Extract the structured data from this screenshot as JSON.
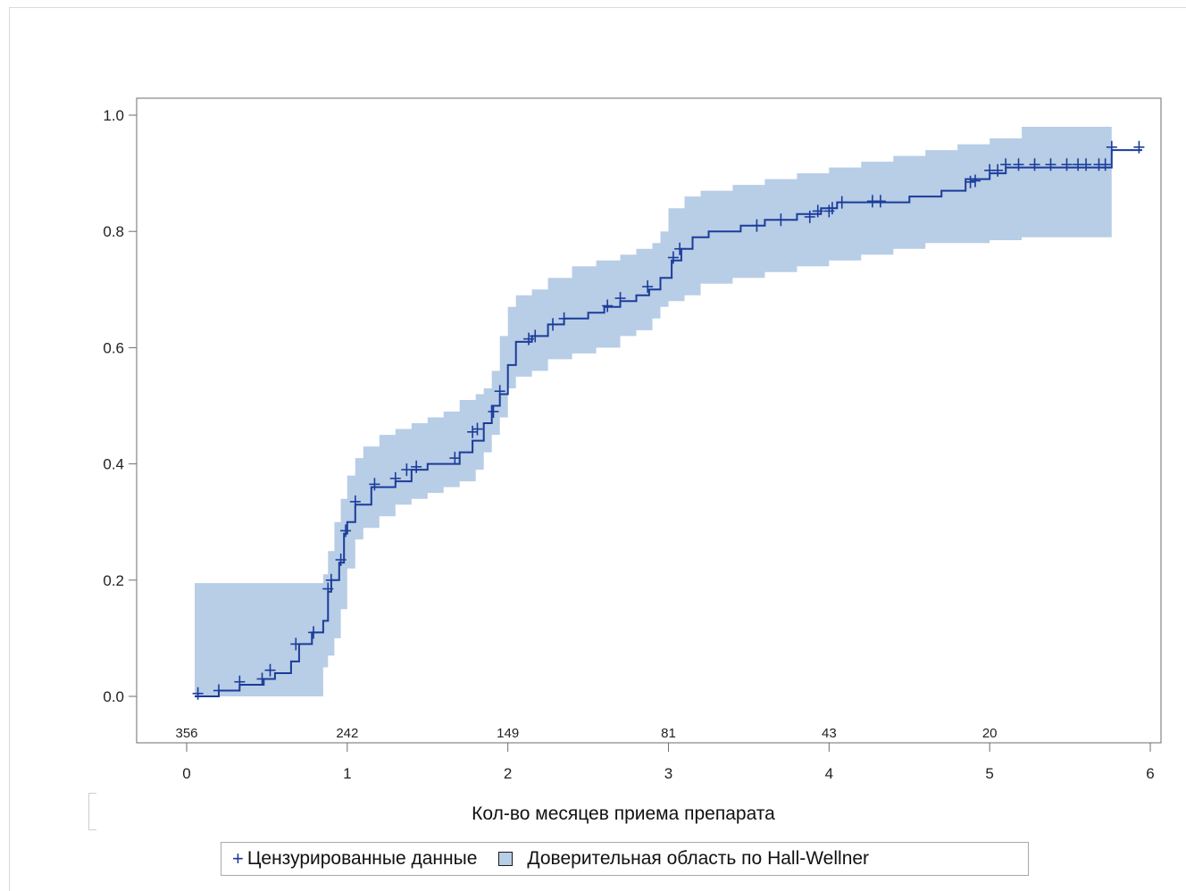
{
  "chart_data": {
    "type": "line",
    "xlabel": "Кол-во месяцев приема препарата",
    "ylabel": "",
    "xlim": [
      0,
      6
    ],
    "ylim": [
      0,
      1
    ],
    "x_ticks": [
      "0",
      "1",
      "2",
      "3",
      "4",
      "5",
      "6"
    ],
    "y_ticks": [
      "0.0",
      "0.2",
      "0.4",
      "0.6",
      "0.8",
      "1.0"
    ],
    "at_risk": [
      {
        "x": 0,
        "n": "356"
      },
      {
        "x": 1,
        "n": "242"
      },
      {
        "x": 2,
        "n": "149"
      },
      {
        "x": 3,
        "n": "81"
      },
      {
        "x": 4,
        "n": "43"
      },
      {
        "x": 5,
        "n": "20"
      }
    ],
    "series": [
      {
        "type": "step",
        "color": "#1a3c9a",
        "x": [
          0.05,
          0.2,
          0.33,
          0.48,
          0.55,
          0.65,
          0.7,
          0.78,
          0.85,
          0.88,
          0.9,
          0.95,
          0.98,
          1.0,
          1.05,
          1.15,
          1.3,
          1.4,
          1.5,
          1.6,
          1.7,
          1.78,
          1.85,
          1.9,
          1.95,
          2.0,
          2.05,
          2.15,
          2.25,
          2.35,
          2.5,
          2.6,
          2.7,
          2.8,
          2.88,
          2.95,
          3.02,
          3.08,
          3.15,
          3.25,
          3.45,
          3.6,
          3.8,
          3.95,
          4.05,
          4.2,
          4.5,
          4.7,
          4.85,
          5.0,
          5.1,
          5.76,
          5.95
        ],
        "y": [
          0.0,
          0.01,
          0.02,
          0.03,
          0.04,
          0.06,
          0.09,
          0.11,
          0.13,
          0.18,
          0.2,
          0.23,
          0.28,
          0.3,
          0.33,
          0.36,
          0.37,
          0.39,
          0.4,
          0.4,
          0.42,
          0.44,
          0.47,
          0.5,
          0.52,
          0.57,
          0.61,
          0.62,
          0.64,
          0.65,
          0.66,
          0.67,
          0.68,
          0.69,
          0.7,
          0.72,
          0.75,
          0.77,
          0.79,
          0.8,
          0.81,
          0.82,
          0.83,
          0.84,
          0.85,
          0.85,
          0.86,
          0.87,
          0.89,
          0.9,
          0.91,
          0.94,
          0.94
        ]
      }
    ],
    "censored": {
      "x": [
        0.07,
        0.2,
        0.33,
        0.47,
        0.52,
        0.68,
        0.79,
        0.88,
        0.9,
        0.96,
        0.99,
        1.05,
        1.17,
        1.3,
        1.37,
        1.43,
        1.67,
        1.78,
        1.81,
        1.91,
        1.95,
        2.13,
        2.17,
        2.28,
        2.35,
        2.62,
        2.7,
        2.87,
        3.03,
        3.07,
        3.55,
        3.7,
        3.88,
        3.93,
        4.0,
        4.02,
        4.08,
        4.27,
        4.32,
        4.88,
        4.91,
        5.0,
        5.05,
        5.1,
        5.18,
        5.28,
        5.38,
        5.48,
        5.55,
        5.6,
        5.68,
        5.72,
        5.76,
        5.93
      ],
      "y": [
        0.005,
        0.01,
        0.025,
        0.03,
        0.045,
        0.09,
        0.11,
        0.185,
        0.2,
        0.235,
        0.285,
        0.335,
        0.365,
        0.375,
        0.39,
        0.395,
        0.41,
        0.455,
        0.46,
        0.49,
        0.525,
        0.615,
        0.62,
        0.64,
        0.65,
        0.672,
        0.685,
        0.705,
        0.755,
        0.77,
        0.81,
        0.82,
        0.825,
        0.835,
        0.835,
        0.84,
        0.85,
        0.852,
        0.852,
        0.885,
        0.887,
        0.905,
        0.905,
        0.915,
        0.915,
        0.915,
        0.915,
        0.915,
        0.915,
        0.915,
        0.915,
        0.915,
        0.945,
        0.945
      ]
    },
    "band": {
      "color": "#b8cde6",
      "x": [
        0.05,
        0.85,
        0.88,
        0.92,
        0.96,
        1.0,
        1.05,
        1.1,
        1.2,
        1.3,
        1.4,
        1.5,
        1.6,
        1.7,
        1.8,
        1.85,
        1.9,
        1.95,
        2.0,
        2.05,
        2.15,
        2.25,
        2.4,
        2.55,
        2.7,
        2.8,
        2.9,
        2.95,
        3.0,
        3.1,
        3.2,
        3.4,
        3.6,
        3.8,
        4.0,
        4.2,
        4.4,
        4.6,
        4.8,
        5.0,
        5.2,
        5.4,
        5.76
      ],
      "lower": [
        0.0,
        0.05,
        0.07,
        0.1,
        0.15,
        0.22,
        0.27,
        0.29,
        0.31,
        0.33,
        0.34,
        0.35,
        0.36,
        0.37,
        0.39,
        0.42,
        0.45,
        0.48,
        0.53,
        0.55,
        0.56,
        0.58,
        0.59,
        0.6,
        0.62,
        0.63,
        0.65,
        0.67,
        0.68,
        0.69,
        0.71,
        0.72,
        0.73,
        0.74,
        0.75,
        0.76,
        0.77,
        0.78,
        0.78,
        0.785,
        0.79,
        0.79,
        0.79
      ],
      "upper": [
        0.195,
        0.21,
        0.25,
        0.3,
        0.34,
        0.38,
        0.41,
        0.43,
        0.45,
        0.46,
        0.47,
        0.48,
        0.49,
        0.51,
        0.52,
        0.53,
        0.56,
        0.62,
        0.67,
        0.69,
        0.7,
        0.72,
        0.74,
        0.75,
        0.76,
        0.77,
        0.78,
        0.8,
        0.84,
        0.86,
        0.87,
        0.88,
        0.89,
        0.9,
        0.91,
        0.92,
        0.93,
        0.94,
        0.95,
        0.96,
        0.98,
        0.98,
        0.98
      ]
    }
  },
  "legend": {
    "censored_symbol": "+",
    "censored_label": "Цензурированные данные",
    "band_label": "Доверительная область по  Hall-Wellner"
  }
}
